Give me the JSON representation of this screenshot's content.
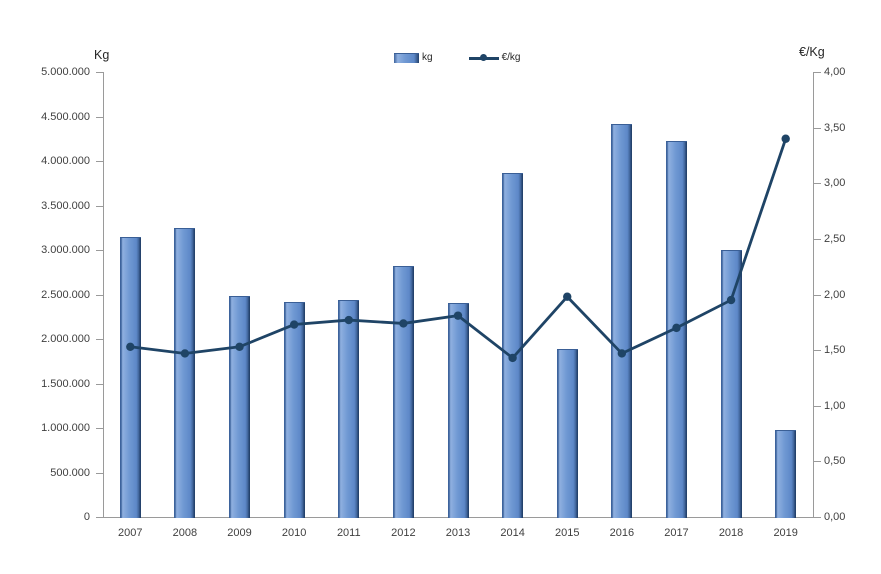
{
  "chart_data": {
    "type": "bar+line combo",
    "categories": [
      "2007",
      "2008",
      "2009",
      "2010",
      "2011",
      "2012",
      "2013",
      "2014",
      "2015",
      "2016",
      "2017",
      "2018",
      "2019"
    ],
    "series": [
      {
        "name": "kg",
        "type": "bar",
        "axis": "left",
        "color": "#5d88c8",
        "values": [
          3150000,
          3250000,
          2480000,
          2420000,
          2440000,
          2820000,
          2400000,
          3860000,
          1890000,
          4420000,
          4220000,
          3000000,
          980000
        ]
      },
      {
        "name": "€/kg",
        "type": "line",
        "axis": "right",
        "color": "#1f4466",
        "values": [
          1.53,
          1.47,
          1.53,
          1.73,
          1.77,
          1.74,
          1.81,
          1.43,
          1.98,
          1.47,
          1.7,
          1.95,
          3.4
        ]
      }
    ],
    "left_axis": {
      "title": "Kg",
      "min": 0,
      "max": 5000000,
      "tick_step": 500000,
      "tick_labels_top_to_bottom": [
        "5.000.000",
        "4.500.000",
        "4.000.000",
        "3.500.000",
        "3.000.000",
        "2.500.000",
        "2.000.000",
        "1.500.000",
        "1.000.000",
        "500.000",
        "0"
      ]
    },
    "right_axis": {
      "title": "€/Kg",
      "min": 0,
      "max": 4,
      "tick_step": 0.5,
      "tick_labels_top_to_bottom": [
        "4,00",
        "3,50",
        "3,00",
        "2,50",
        "2,00",
        "1,50",
        "1,00",
        "0,50",
        "0,00"
      ]
    },
    "legend": {
      "position": "top-center",
      "entries": [
        "kg",
        "€/kg"
      ]
    },
    "grid": false,
    "background_color": "#ffffff",
    "axis_line_color": "#9a9a9a"
  }
}
